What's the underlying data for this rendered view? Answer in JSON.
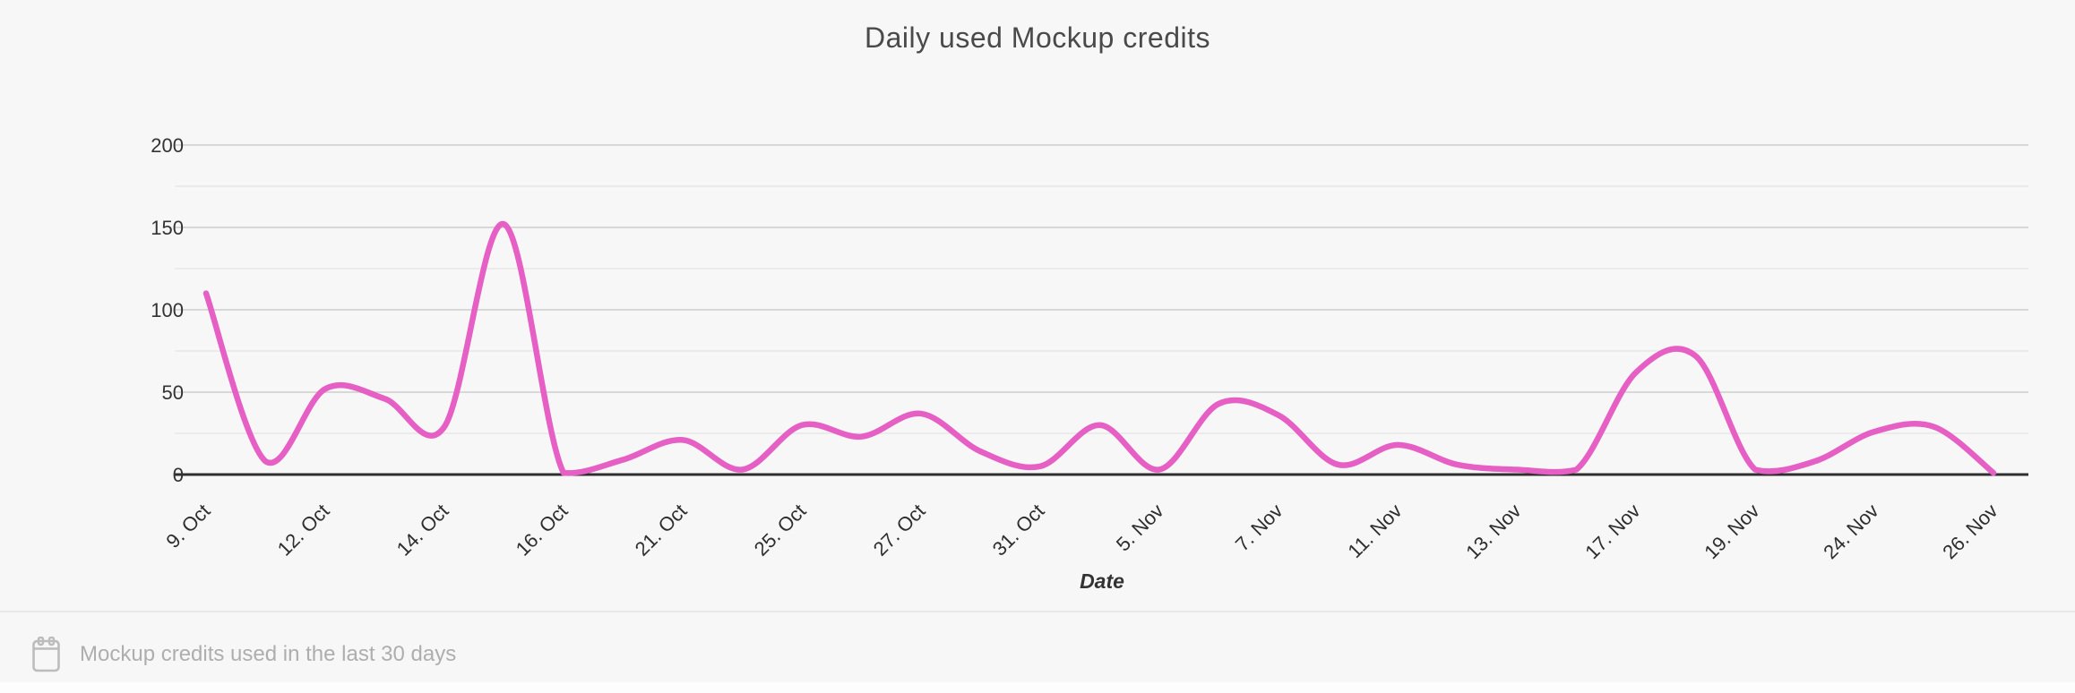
{
  "page": {
    "background": "#f7f7f7"
  },
  "chart_data": {
    "type": "line",
    "title": "Daily used Mockup credits",
    "xlabel": "Date",
    "ylabel": "",
    "ylim": [
      0,
      200
    ],
    "y_ticks": [
      0,
      50,
      100,
      150,
      200
    ],
    "grid": "horizontal gridlines, minor every 25, major every 50, no vertical grid",
    "legend": "none",
    "line_style": "smooth spline",
    "x_tick_labels": [
      "9. Oct",
      "12. Oct",
      "14. Oct",
      "16. Oct",
      "21. Oct",
      "25. Oct",
      "27. Oct",
      "31. Oct",
      "5. Nov",
      "7. Nov",
      "11. Nov",
      "13. Nov",
      "17. Nov",
      "19. Nov",
      "24. Nov",
      "26. Nov"
    ],
    "series": [
      {
        "name": "Mockup credits",
        "color": "#e55fc4",
        "categories": [
          "9. Oct",
          "",
          "12. Oct",
          "",
          "14. Oct",
          "",
          "16. Oct",
          "",
          "21. Oct",
          "",
          "25. Oct",
          "",
          "27. Oct",
          "",
          "31. Oct",
          "",
          "5. Nov",
          "",
          "7. Nov",
          "",
          "11. Nov",
          "",
          "13. Nov",
          "",
          "17. Nov",
          "",
          "19. Nov",
          "",
          "24. Nov",
          "",
          "26. Nov"
        ],
        "values": [
          110,
          8,
          52,
          46,
          29,
          152,
          1,
          9,
          21,
          3,
          30,
          23,
          37,
          14,
          5,
          30,
          3,
          43,
          36,
          6,
          18,
          6,
          3,
          3,
          62,
          72,
          3,
          8,
          26,
          29,
          1
        ]
      }
    ]
  },
  "footer": {
    "icon": "calendar-icon",
    "label": "Mockup credits used in the last 30 days"
  },
  "colors": {
    "background": "#f7f7f7",
    "line": "#e55fc4",
    "axis": "#2f2f2f",
    "grid_major": "#d8d8d8",
    "grid_minor": "#ebebeb",
    "title_text": "#4a4a4a",
    "tick_text": "#333333",
    "footer_text": "#aeaeae",
    "divider": "#e8e8e8"
  }
}
